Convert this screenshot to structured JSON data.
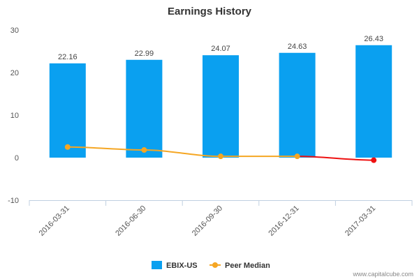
{
  "chart_data": {
    "type": "bar",
    "title": "Earnings History",
    "categories": [
      "2016-03-31",
      "2016-06-30",
      "2016-09-30",
      "2016-12-31",
      "2017-03-31"
    ],
    "series": [
      {
        "name": "EBIX-US",
        "kind": "bar",
        "values": [
          22.16,
          22.99,
          24.07,
          24.63,
          26.43
        ],
        "labels": [
          "22.16",
          "22.99",
          "24.07",
          "24.63",
          "26.43"
        ],
        "color": "#0aa0f0"
      },
      {
        "name": "Peer Median",
        "kind": "line",
        "values": [
          2.5,
          1.8,
          0.3,
          0.3,
          -0.6
        ],
        "color": "#f5a623",
        "negative_color": "#ee1111"
      }
    ],
    "ylim": [
      -10,
      30
    ],
    "yticks": [
      -10,
      0,
      10,
      20,
      30
    ],
    "grid": false,
    "legend_position": "bottom"
  },
  "credit": "www.capitalcube.com"
}
